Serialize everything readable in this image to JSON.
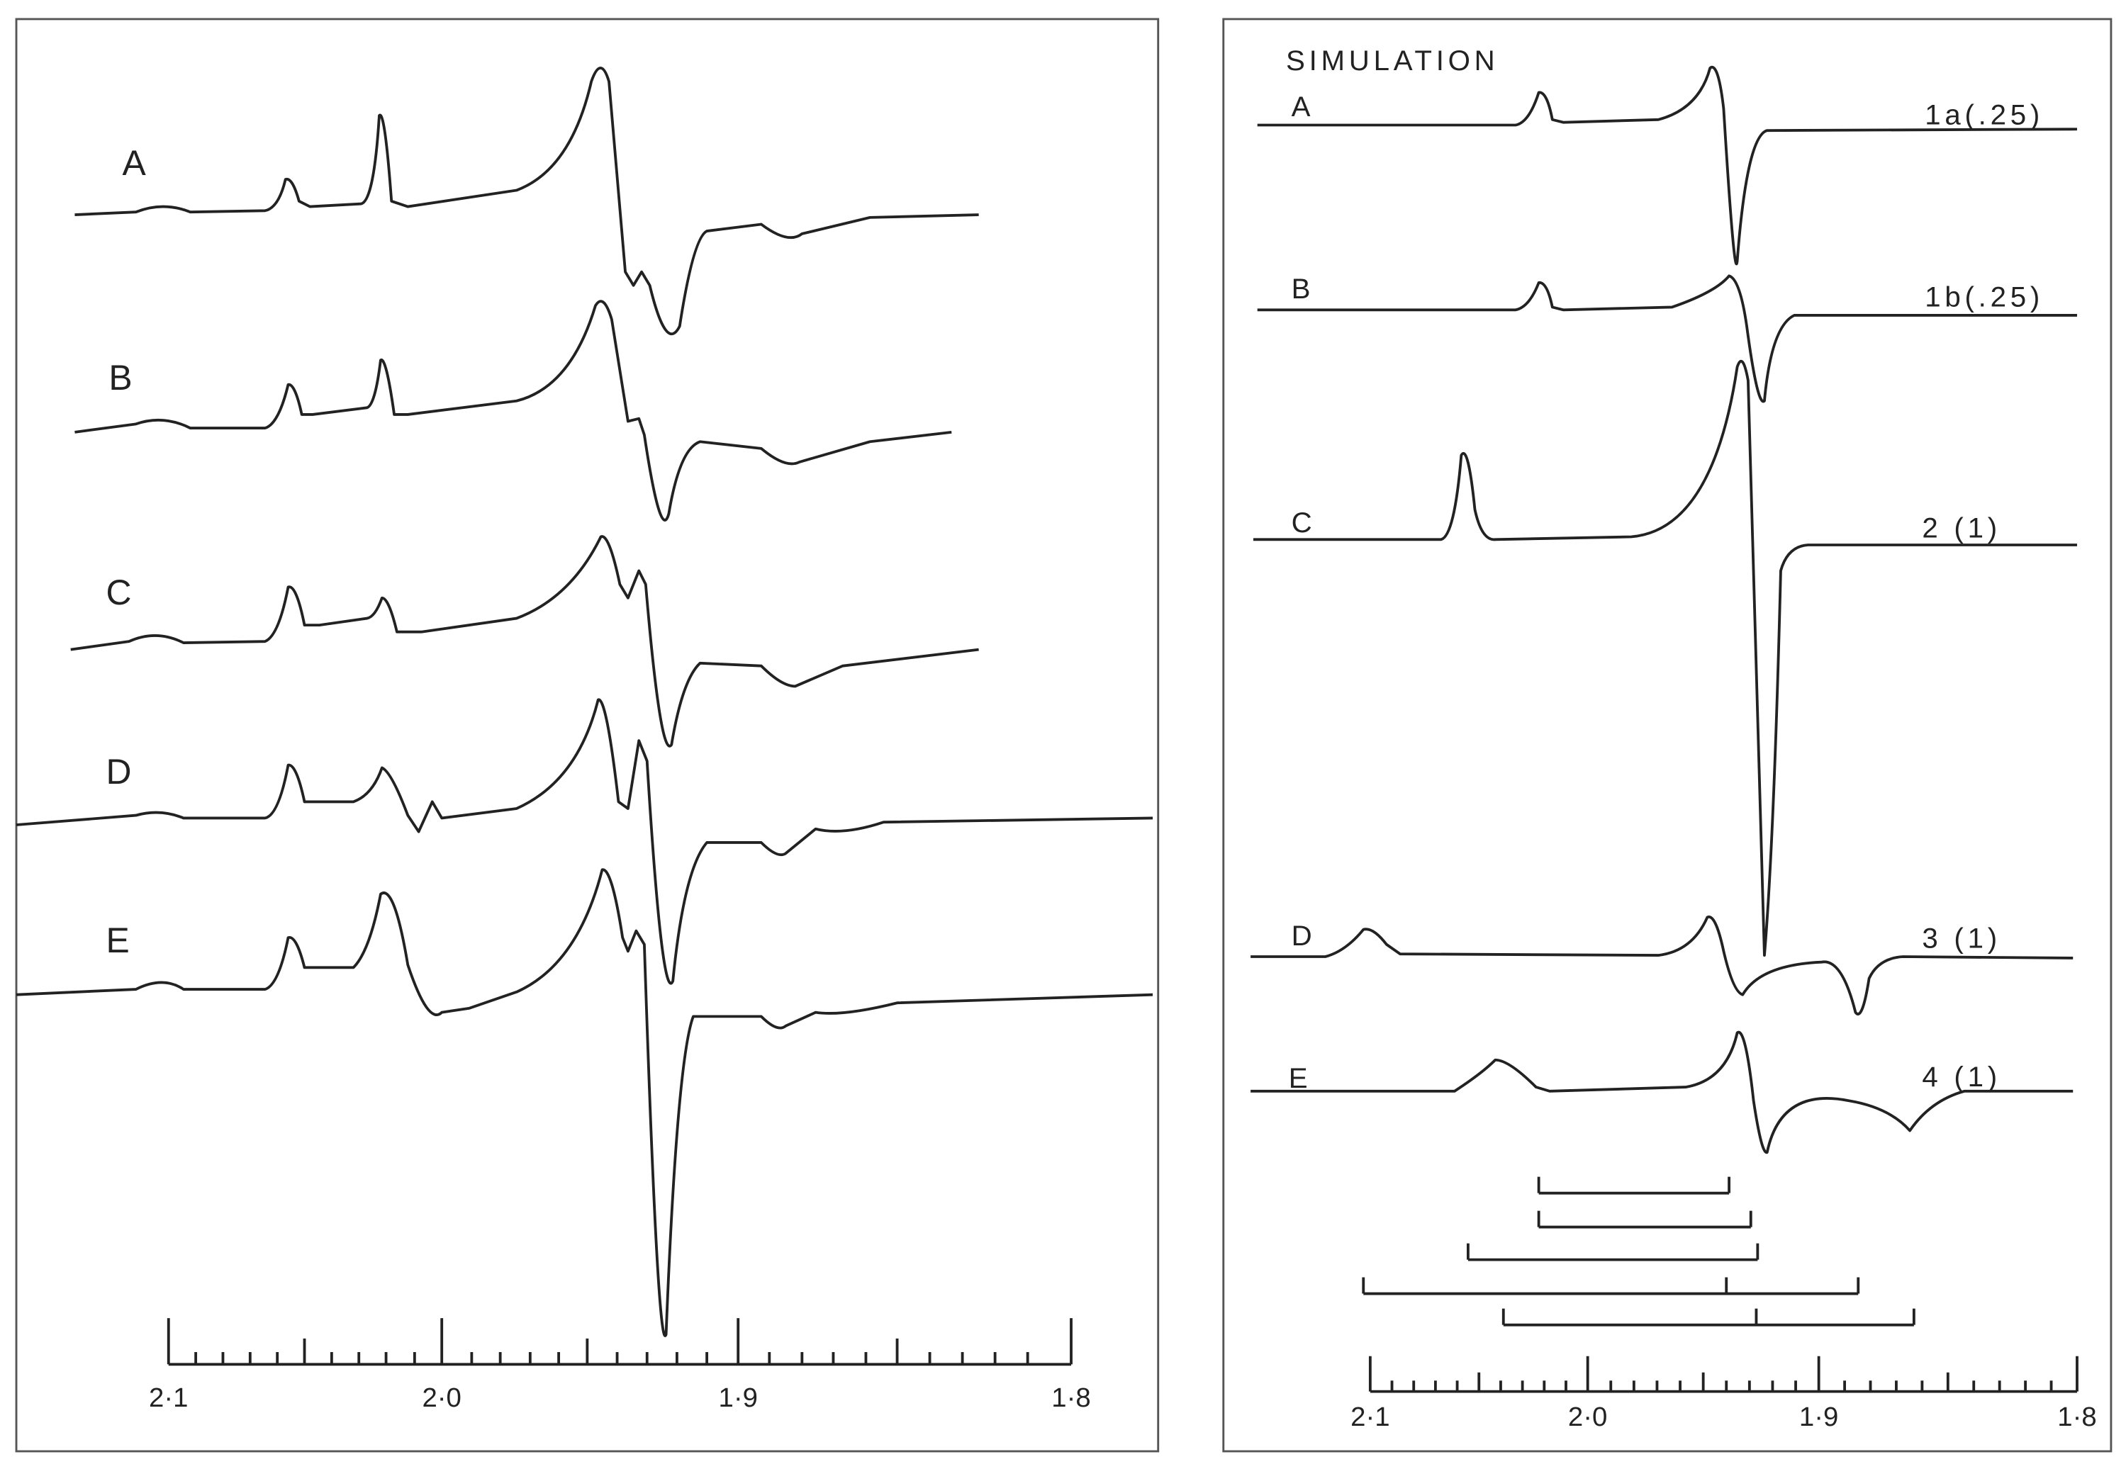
{
  "left_panel": {
    "trace_labels": [
      "A",
      "B",
      "C",
      "D",
      "E"
    ],
    "axis_labels": [
      "2·1",
      "2·0",
      "1·9",
      "1·8"
    ]
  },
  "right_panel": {
    "title": "SIMULATION",
    "trace_labels": [
      "A",
      "B",
      "C",
      "D",
      "E"
    ],
    "trace_annotations": [
      "1a(.25)",
      "1b(.25)",
      "2 (1)",
      "3 (1)",
      "4 (1)"
    ],
    "axis_labels": [
      "2·1",
      "2·0",
      "1·9",
      "1·8"
    ]
  }
}
